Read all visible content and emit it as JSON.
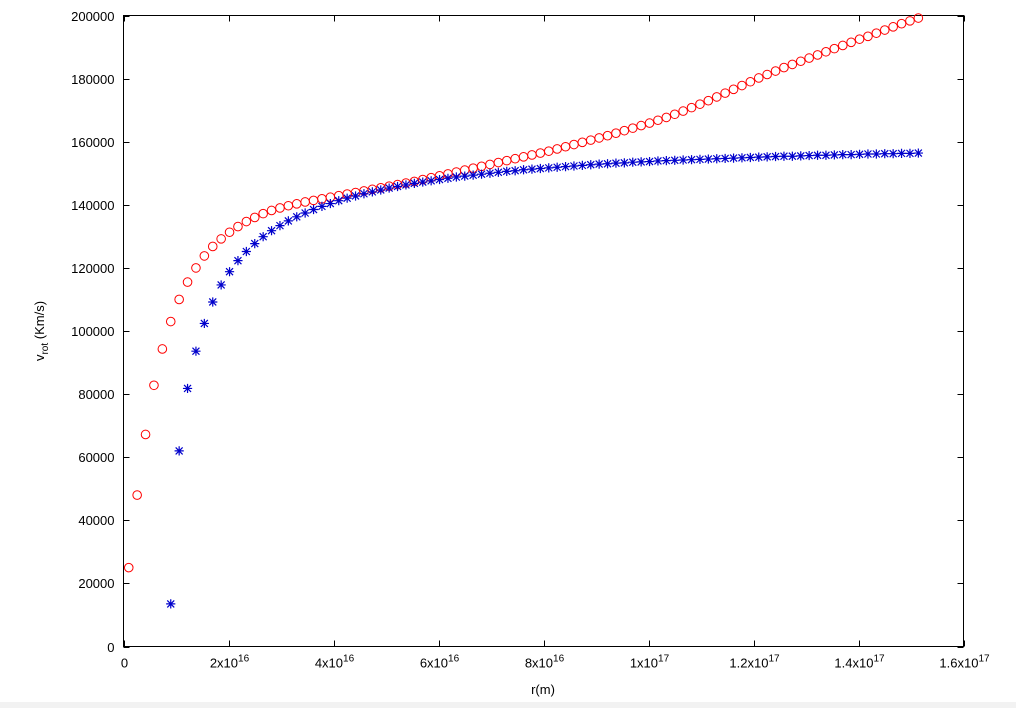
{
  "chart_data": {
    "type": "scatter",
    "xlabel": "r(m)",
    "ylabel_main": "v",
    "ylabel_sub": "rot",
    "ylabel_suffix": " (Km/s)",
    "xlim": [
      0,
      1.6e+17
    ],
    "ylim": [
      0,
      200000
    ],
    "grid": false,
    "legend": "none",
    "y_ticks": [
      {
        "value": 0,
        "label": "0"
      },
      {
        "value": 20000,
        "label": "20000"
      },
      {
        "value": 40000,
        "label": "40000"
      },
      {
        "value": 60000,
        "label": "60000"
      },
      {
        "value": 80000,
        "label": "80000"
      },
      {
        "value": 100000,
        "label": "100000"
      },
      {
        "value": 120000,
        "label": "120000"
      },
      {
        "value": 140000,
        "label": "140000"
      },
      {
        "value": 160000,
        "label": "160000"
      },
      {
        "value": 180000,
        "label": "180000"
      },
      {
        "value": 200000,
        "label": "200000"
      }
    ],
    "x_ticks": [
      {
        "value": 0,
        "mant": "0",
        "exp": ""
      },
      {
        "value": 2e+16,
        "mant": "2x10",
        "exp": "16"
      },
      {
        "value": 4e+16,
        "mant": "4x10",
        "exp": "16"
      },
      {
        "value": 6e+16,
        "mant": "6x10",
        "exp": "16"
      },
      {
        "value": 8e+16,
        "mant": "8x10",
        "exp": "16"
      },
      {
        "value": 1e+17,
        "mant": "1x10",
        "exp": "17"
      },
      {
        "value": 1.2e+17,
        "mant": "1.2x10",
        "exp": "17"
      },
      {
        "value": 1.4e+17,
        "mant": "1.4x10",
        "exp": "17"
      },
      {
        "value": 1.6e+17,
        "mant": "1.6x10",
        "exp": "17"
      }
    ],
    "series": [
      {
        "marker": "circle",
        "color": "#ff0000",
        "points": [
          [
            1000000000000000.0,
            25000
          ],
          [
            2600000000000000.0,
            48000
          ],
          [
            4200000000000000.0,
            67200
          ],
          [
            5800000000000000.0,
            82800
          ],
          [
            7400000000000000.0,
            94300
          ],
          [
            9000000000000000.0,
            103000
          ],
          [
            1.06e+16,
            110000
          ],
          [
            1.22e+16,
            115500
          ],
          [
            1.38e+16,
            120000
          ],
          [
            1.54e+16,
            123800
          ],
          [
            1.7e+16,
            126800
          ],
          [
            1.86e+16,
            129200
          ],
          [
            2.02e+16,
            131300
          ],
          [
            2.18e+16,
            133100
          ],
          [
            2.34e+16,
            134700
          ],
          [
            2.5e+16,
            136000
          ],
          [
            2.66e+16,
            137200
          ],
          [
            2.82e+16,
            138200
          ],
          [
            2.98e+16,
            139000
          ],
          [
            3.14e+16,
            139700
          ],
          [
            3.3e+16,
            140300
          ],
          [
            3.46e+16,
            140900
          ],
          [
            3.62e+16,
            141400
          ],
          [
            3.78e+16,
            141900
          ],
          [
            3.94e+16,
            142400
          ],
          [
            4.1e+16,
            142900
          ],
          [
            4.26e+16,
            143400
          ],
          [
            4.42e+16,
            143900
          ],
          [
            4.58e+16,
            144400
          ],
          [
            4.74e+16,
            144900
          ],
          [
            4.9e+16,
            145400
          ],
          [
            5.06e+16,
            145900
          ],
          [
            5.22e+16,
            146400
          ],
          [
            5.38e+16,
            146900
          ],
          [
            5.54e+16,
            147400
          ],
          [
            5.7e+16,
            148000
          ],
          [
            5.86e+16,
            148600
          ],
          [
            6.02e+16,
            149200
          ],
          [
            6.18e+16,
            149800
          ],
          [
            6.34e+16,
            150400
          ],
          [
            6.5e+16,
            151000
          ],
          [
            6.66e+16,
            151600
          ],
          [
            6.82e+16,
            152200
          ],
          [
            6.98e+16,
            152800
          ],
          [
            7.14e+16,
            153400
          ],
          [
            7.3e+16,
            154000
          ],
          [
            7.46e+16,
            154600
          ],
          [
            7.62e+16,
            155200
          ],
          [
            7.78e+16,
            155800
          ],
          [
            7.94e+16,
            156400
          ],
          [
            8.1e+16,
            157000
          ],
          [
            8.26e+16,
            157700
          ],
          [
            8.42e+16,
            158400
          ],
          [
            8.58e+16,
            159100
          ],
          [
            8.74e+16,
            159800
          ],
          [
            8.9e+16,
            160500
          ],
          [
            9.06e+16,
            161200
          ],
          [
            9.22e+16,
            161900
          ],
          [
            9.38e+16,
            162700
          ],
          [
            9.54e+16,
            163500
          ],
          [
            9.7e+16,
            164300
          ],
          [
            9.86e+16,
            165100
          ],
          [
            1.002e+17,
            165900
          ],
          [
            1.018e+17,
            166800
          ],
          [
            1.034e+17,
            167700
          ],
          [
            1.05e+17,
            168700
          ],
          [
            1.066e+17,
            169700
          ],
          [
            1.082e+17,
            170800
          ],
          [
            1.098e+17,
            171900
          ],
          [
            1.114e+17,
            173000
          ],
          [
            1.13e+17,
            174200
          ],
          [
            1.146e+17,
            175400
          ],
          [
            1.162e+17,
            176600
          ],
          [
            1.178e+17,
            177800
          ],
          [
            1.194e+17,
            179000
          ],
          [
            1.21e+17,
            180200
          ],
          [
            1.226e+17,
            181300
          ],
          [
            1.242e+17,
            182400
          ],
          [
            1.258e+17,
            183500
          ],
          [
            1.274e+17,
            184500
          ],
          [
            1.29e+17,
            185500
          ],
          [
            1.306e+17,
            186500
          ],
          [
            1.322e+17,
            187500
          ],
          [
            1.338e+17,
            188500
          ],
          [
            1.354e+17,
            189500
          ],
          [
            1.37e+17,
            190500
          ],
          [
            1.386e+17,
            191500
          ],
          [
            1.402e+17,
            192500
          ],
          [
            1.418e+17,
            193400
          ],
          [
            1.434e+17,
            194400
          ],
          [
            1.45e+17,
            195400
          ],
          [
            1.466e+17,
            196400
          ],
          [
            1.482e+17,
            197400
          ],
          [
            1.498e+17,
            198300
          ],
          [
            1.514e+17,
            199200
          ]
        ]
      },
      {
        "marker": "star",
        "color": "#0000cc",
        "points": [
          [
            9000000000000000.0,
            13500
          ],
          [
            1.06e+16,
            62000
          ],
          [
            1.22e+16,
            81800
          ],
          [
            1.38e+16,
            93600
          ],
          [
            1.54e+16,
            102400
          ],
          [
            1.7e+16,
            109200
          ],
          [
            1.86e+16,
            114600
          ],
          [
            2.02e+16,
            118800
          ],
          [
            2.18e+16,
            122300
          ],
          [
            2.34e+16,
            125200
          ],
          [
            2.5e+16,
            127700
          ],
          [
            2.66e+16,
            129900
          ],
          [
            2.82e+16,
            131800
          ],
          [
            2.98e+16,
            133400
          ],
          [
            3.14e+16,
            134900
          ],
          [
            3.3e+16,
            136200
          ],
          [
            3.46e+16,
            137400
          ],
          [
            3.62e+16,
            138500
          ],
          [
            3.78e+16,
            139500
          ],
          [
            3.94e+16,
            140400
          ],
          [
            4.1e+16,
            141300
          ],
          [
            4.26e+16,
            142100
          ],
          [
            4.42e+16,
            142800
          ],
          [
            4.58e+16,
            143500
          ],
          [
            4.74e+16,
            144100
          ],
          [
            4.9e+16,
            144700
          ],
          [
            5.06e+16,
            145300
          ],
          [
            5.22e+16,
            145800
          ],
          [
            5.38e+16,
            146300
          ],
          [
            5.54e+16,
            146800
          ],
          [
            5.7e+16,
            147200
          ],
          [
            5.86e+16,
            147600
          ],
          [
            6.02e+16,
            148000
          ],
          [
            6.18e+16,
            148400
          ],
          [
            6.34e+16,
            148800
          ],
          [
            6.5e+16,
            149100
          ],
          [
            6.66e+16,
            149400
          ],
          [
            6.82e+16,
            149700
          ],
          [
            6.98e+16,
            150000
          ],
          [
            7.14e+16,
            150300
          ],
          [
            7.3e+16,
            150600
          ],
          [
            7.46e+16,
            150800
          ],
          [
            7.62e+16,
            151100
          ],
          [
            7.78e+16,
            151300
          ],
          [
            7.94e+16,
            151500
          ],
          [
            8.1e+16,
            151700
          ],
          [
            8.26e+16,
            151900
          ],
          [
            8.42e+16,
            152100
          ],
          [
            8.58e+16,
            152300
          ],
          [
            8.74e+16,
            152500
          ],
          [
            8.9e+16,
            152700
          ],
          [
            9.06e+16,
            152900
          ],
          [
            9.22e+16,
            153000
          ],
          [
            9.38e+16,
            153200
          ],
          [
            9.54e+16,
            153300
          ],
          [
            9.7e+16,
            153500
          ],
          [
            9.86e+16,
            153600
          ],
          [
            1.002e+17,
            153700
          ],
          [
            1.018e+17,
            153900
          ],
          [
            1.034e+17,
            154000
          ],
          [
            1.05e+17,
            154100
          ],
          [
            1.066e+17,
            154200
          ],
          [
            1.082e+17,
            154300
          ],
          [
            1.098e+17,
            154400
          ],
          [
            1.114e+17,
            154500
          ],
          [
            1.13e+17,
            154600
          ],
          [
            1.146e+17,
            154700
          ],
          [
            1.162e+17,
            154800
          ],
          [
            1.178e+17,
            154900
          ],
          [
            1.194e+17,
            155000
          ],
          [
            1.21e+17,
            155100
          ],
          [
            1.226e+17,
            155200
          ],
          [
            1.242e+17,
            155300
          ],
          [
            1.258e+17,
            155400
          ],
          [
            1.274e+17,
            155400
          ],
          [
            1.29e+17,
            155500
          ],
          [
            1.306e+17,
            155600
          ],
          [
            1.322e+17,
            155700
          ],
          [
            1.338e+17,
            155700
          ],
          [
            1.354e+17,
            155800
          ],
          [
            1.37e+17,
            155900
          ],
          [
            1.386e+17,
            155900
          ],
          [
            1.402e+17,
            156000
          ],
          [
            1.418e+17,
            156100
          ],
          [
            1.434e+17,
            156100
          ],
          [
            1.45e+17,
            156200
          ],
          [
            1.466e+17,
            156200
          ],
          [
            1.482e+17,
            156300
          ],
          [
            1.498e+17,
            156300
          ],
          [
            1.514e+17,
            156400
          ]
        ]
      }
    ]
  }
}
